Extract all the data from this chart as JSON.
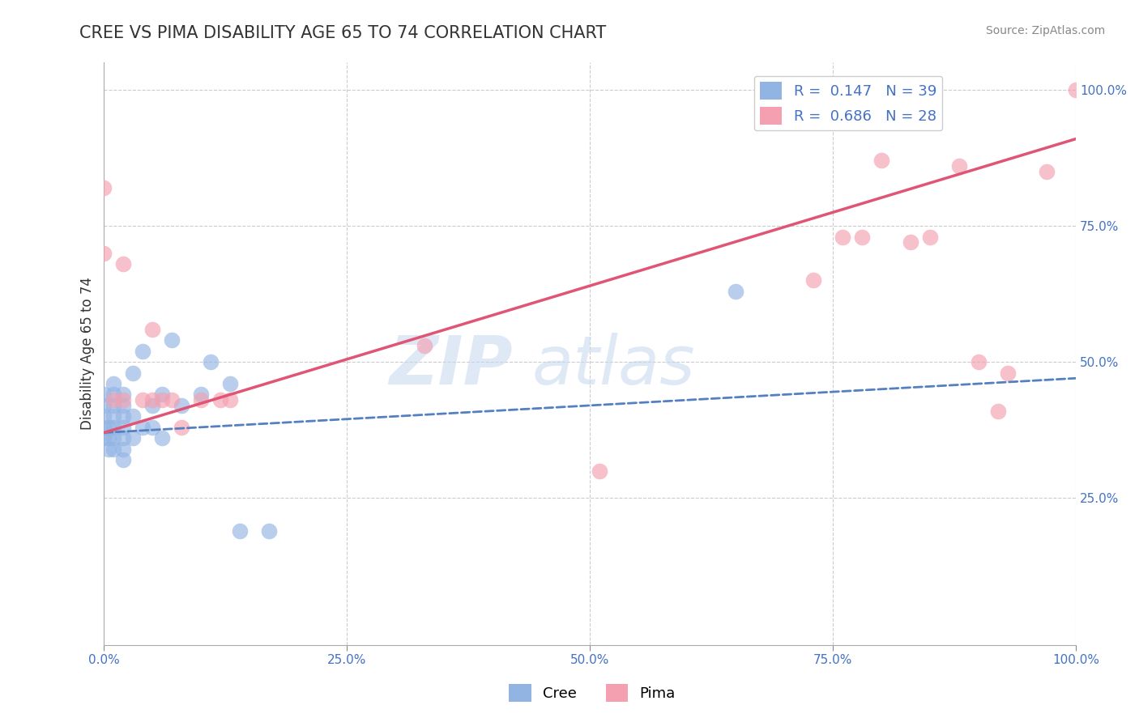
{
  "title": "CREE VS PIMA DISABILITY AGE 65 TO 74 CORRELATION CHART",
  "source": "Source: ZipAtlas.com",
  "ylabel": "Disability Age 65 to 74",
  "xlim": [
    0.0,
    1.0
  ],
  "ylim": [
    -0.02,
    1.05
  ],
  "y_ticks_right": [
    0.25,
    0.5,
    0.75,
    1.0
  ],
  "y_tick_labels_right": [
    "25.0%",
    "50.0%",
    "75.0%",
    "100.0%"
  ],
  "legend_line1": "R =  0.147   N = 39",
  "legend_line2": "R =  0.686   N = 28",
  "cree_color": "#92b4e3",
  "pima_color": "#f4a0b0",
  "cree_trend_color": "#5580c0",
  "pima_trend_color": "#e05575",
  "watermark_text": "ZIP",
  "watermark_text2": "atlas",
  "cree_x": [
    0.0,
    0.0,
    0.0,
    0.0,
    0.0,
    0.005,
    0.005,
    0.005,
    0.01,
    0.01,
    0.01,
    0.01,
    0.01,
    0.01,
    0.01,
    0.02,
    0.02,
    0.02,
    0.02,
    0.02,
    0.02,
    0.02,
    0.03,
    0.03,
    0.03,
    0.04,
    0.04,
    0.05,
    0.05,
    0.06,
    0.06,
    0.07,
    0.08,
    0.1,
    0.11,
    0.13,
    0.14,
    0.17,
    0.65
  ],
  "cree_y": [
    0.36,
    0.38,
    0.4,
    0.42,
    0.44,
    0.34,
    0.36,
    0.38,
    0.34,
    0.36,
    0.38,
    0.4,
    0.42,
    0.44,
    0.46,
    0.32,
    0.34,
    0.36,
    0.38,
    0.4,
    0.42,
    0.44,
    0.36,
    0.4,
    0.48,
    0.38,
    0.52,
    0.38,
    0.42,
    0.36,
    0.44,
    0.54,
    0.42,
    0.44,
    0.5,
    0.46,
    0.19,
    0.19,
    0.63
  ],
  "pima_x": [
    0.0,
    0.0,
    0.01,
    0.02,
    0.02,
    0.04,
    0.05,
    0.05,
    0.06,
    0.07,
    0.08,
    0.1,
    0.12,
    0.13,
    0.33,
    0.51,
    0.73,
    0.76,
    0.78,
    0.8,
    0.83,
    0.85,
    0.88,
    0.9,
    0.92,
    0.93,
    0.97,
    1.0
  ],
  "pima_y": [
    0.82,
    0.7,
    0.43,
    0.43,
    0.68,
    0.43,
    0.56,
    0.43,
    0.43,
    0.43,
    0.38,
    0.43,
    0.43,
    0.43,
    0.53,
    0.3,
    0.65,
    0.73,
    0.73,
    0.87,
    0.72,
    0.73,
    0.86,
    0.5,
    0.41,
    0.48,
    0.85,
    1.0
  ],
  "cree_trend_x": [
    0.0,
    1.0
  ],
  "cree_trend_y": [
    0.37,
    0.47
  ],
  "pima_trend_x": [
    0.0,
    1.0
  ],
  "pima_trend_y": [
    0.37,
    0.91
  ],
  "background_color": "#ffffff",
  "grid_color": "#cccccc",
  "title_color": "#333333",
  "label_color": "#4472c4",
  "title_fontsize": 15,
  "axis_fontsize": 12
}
